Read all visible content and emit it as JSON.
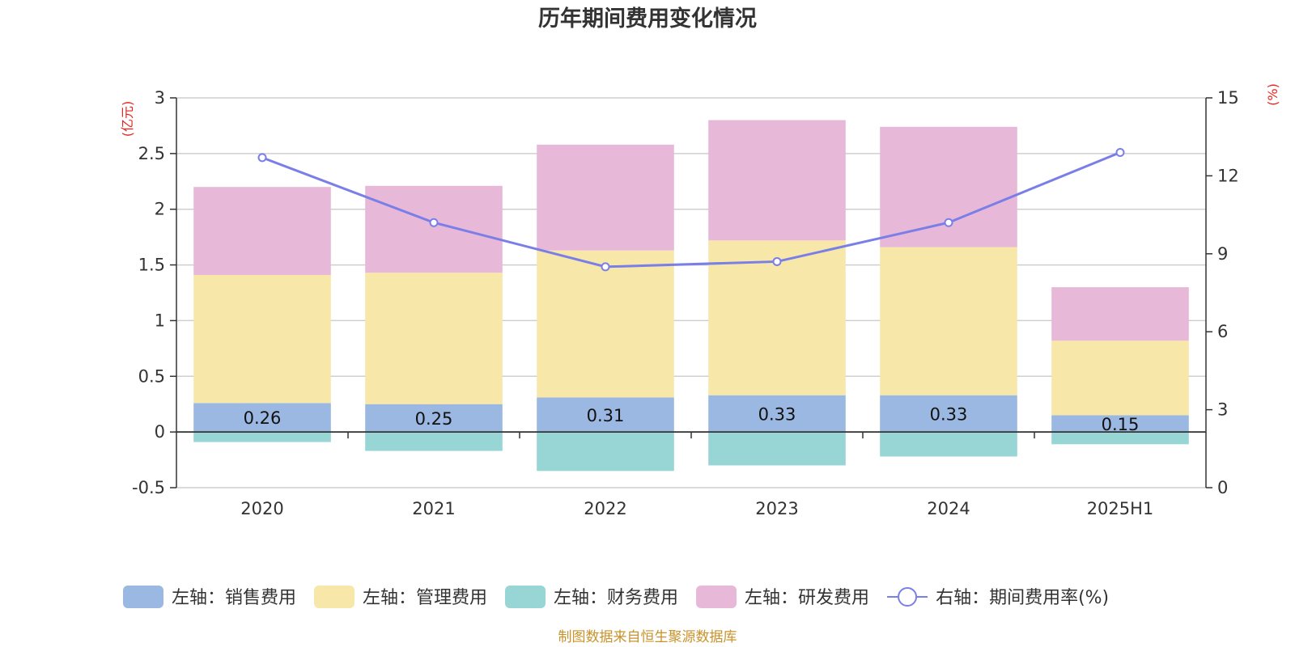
{
  "chart_data": {
    "type": "bar",
    "stacked": true,
    "title": "历年期间费用变化情况",
    "categories": [
      "2020",
      "2021",
      "2022",
      "2023",
      "2024",
      "2025H1"
    ],
    "left_axis": {
      "unit": "(亿元)",
      "ylim": [
        -0.5,
        3
      ],
      "ticks": [
        "3",
        "2.5",
        "2",
        "1.5",
        "1",
        "0.5",
        "0",
        "-0.5"
      ]
    },
    "right_axis": {
      "unit": "(%)",
      "ylim": [
        0,
        15
      ],
      "ticks": [
        "15",
        "12",
        "9",
        "6",
        "3",
        "0"
      ]
    },
    "grid": true,
    "legend_position": "bottom",
    "series": [
      {
        "name": "左轴：销售费用",
        "axis": "left",
        "type": "bar",
        "color": "#9bb8e2",
        "values": [
          0.26,
          0.25,
          0.31,
          0.33,
          0.33,
          0.15
        ],
        "labels": [
          "0.26",
          "0.25",
          "0.31",
          "0.33",
          "0.33",
          "0.15"
        ]
      },
      {
        "name": "左轴：管理费用",
        "axis": "left",
        "type": "bar",
        "color": "#f7e7a8",
        "values": [
          1.15,
          1.18,
          1.32,
          1.39,
          1.33,
          0.67
        ]
      },
      {
        "name": "左轴：财务费用",
        "axis": "left",
        "type": "bar",
        "color": "#98d5d5",
        "values": [
          -0.09,
          -0.17,
          -0.35,
          -0.3,
          -0.22,
          -0.11
        ]
      },
      {
        "name": "左轴：研发费用",
        "axis": "left",
        "type": "bar",
        "color": "#e8b8d8",
        "values": [
          0.79,
          0.78,
          0.95,
          1.08,
          1.08,
          0.48
        ]
      },
      {
        "name": "右轴：期间费用率(%)",
        "axis": "right",
        "type": "line",
        "color": "#7a7fe8",
        "values": [
          12.7,
          10.2,
          8.5,
          8.7,
          10.2,
          12.9
        ]
      }
    ],
    "source_note": "制图数据来自恒生聚源数据库"
  }
}
